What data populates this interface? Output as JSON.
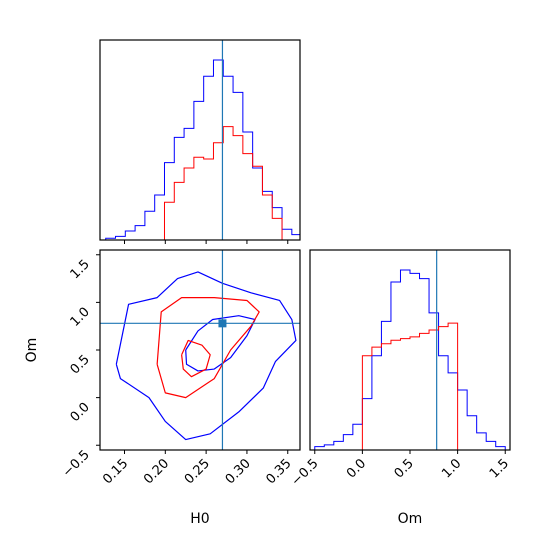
{
  "chart_data": [
    {
      "panel": "H0 marginal",
      "type": "histogram",
      "x_range": [
        0.12,
        0.365
      ],
      "truth": 0.27,
      "truth_color": "#1f77b4",
      "series": [
        {
          "color": "#0000ff",
          "bin_edges": [
            0.115,
            0.127,
            0.139,
            0.151,
            0.163,
            0.175,
            0.187,
            0.199,
            0.211,
            0.223,
            0.235,
            0.247,
            0.259,
            0.271,
            0.283,
            0.295,
            0.307,
            0.319,
            0.331,
            0.343,
            0.355,
            0.367
          ],
          "counts": [
            0,
            1,
            2,
            5,
            8,
            16,
            25,
            43,
            57,
            62,
            77,
            91,
            100,
            91,
            82,
            60,
            40,
            27,
            18,
            6,
            3
          ]
        },
        {
          "color": "#ff0000",
          "bin_edges": [
            0.199,
            0.211,
            0.223,
            0.235,
            0.247,
            0.259,
            0.271,
            0.283,
            0.295,
            0.307,
            0.319,
            0.331,
            0.343
          ],
          "counts": [
            21,
            32,
            40,
            46,
            45,
            54,
            63,
            58,
            48,
            41,
            25,
            12
          ]
        }
      ],
      "x_ticks": [
        "",
        "",
        "",
        "",
        "",
        ""
      ]
    },
    {
      "panel": "H0-Om joint",
      "type": "contour",
      "xlabel": "H0",
      "ylabel": "Om",
      "x_range": [
        0.12,
        0.365
      ],
      "y_range": [
        -0.55,
        1.55
      ],
      "truth_point": [
        0.27,
        0.78
      ],
      "x_ticks": [
        "0.15",
        "0.20",
        "0.25",
        "0.30",
        "0.35"
      ],
      "y_ticks": [
        "−0.5",
        "0.0",
        "0.5",
        "1.0",
        "1.5"
      ],
      "contours": [
        {
          "color": "#0000ff",
          "level": "outer",
          "points": [
            [
              0.14,
              0.35
            ],
            [
              0.155,
              0.98
            ],
            [
              0.19,
              1.05
            ],
            [
              0.215,
              1.25
            ],
            [
              0.24,
              1.32
            ],
            [
              0.27,
              1.2
            ],
            [
              0.305,
              1.1
            ],
            [
              0.34,
              1.02
            ],
            [
              0.355,
              0.82
            ],
            [
              0.36,
              0.6
            ],
            [
              0.335,
              0.38
            ],
            [
              0.32,
              0.1
            ],
            [
              0.29,
              -0.15
            ],
            [
              0.255,
              -0.38
            ],
            [
              0.225,
              -0.44
            ],
            [
              0.2,
              -0.25
            ],
            [
              0.18,
              0.0
            ],
            [
              0.145,
              0.2
            ],
            [
              0.14,
              0.35
            ]
          ]
        },
        {
          "color": "#0000ff",
          "level": "inner",
          "points": [
            [
              0.225,
              0.5
            ],
            [
              0.24,
              0.7
            ],
            [
              0.258,
              0.82
            ],
            [
              0.29,
              0.86
            ],
            [
              0.31,
              0.82
            ],
            [
              0.3,
              0.65
            ],
            [
              0.28,
              0.42
            ],
            [
              0.26,
              0.3
            ],
            [
              0.24,
              0.28
            ],
            [
              0.226,
              0.35
            ],
            [
              0.225,
              0.5
            ]
          ]
        },
        {
          "color": "#ff0000",
          "level": "outer",
          "points": [
            [
              0.19,
              0.35
            ],
            [
              0.195,
              0.9
            ],
            [
              0.22,
              1.05
            ],
            [
              0.26,
              1.05
            ],
            [
              0.3,
              1.02
            ],
            [
              0.315,
              0.9
            ],
            [
              0.305,
              0.75
            ],
            [
              0.28,
              0.5
            ],
            [
              0.26,
              0.2
            ],
            [
              0.225,
              0.0
            ],
            [
              0.2,
              0.05
            ],
            [
              0.19,
              0.35
            ]
          ]
        },
        {
          "color": "#ff0000",
          "level": "inner",
          "points": [
            [
              0.22,
              0.45
            ],
            [
              0.228,
              0.6
            ],
            [
              0.245,
              0.55
            ],
            [
              0.255,
              0.45
            ],
            [
              0.25,
              0.3
            ],
            [
              0.232,
              0.22
            ],
            [
              0.222,
              0.3
            ],
            [
              0.22,
              0.45
            ]
          ]
        }
      ]
    },
    {
      "panel": "Om marginal",
      "type": "histogram",
      "xlabel": "Om",
      "x_range": [
        -0.55,
        1.55
      ],
      "truth": 0.78,
      "truth_color": "#1f77b4",
      "x_ticks": [
        "−0.5",
        "0.0",
        "0.5",
        "1.0",
        "1.5"
      ],
      "series": [
        {
          "color": "#0000ff",
          "bin_edges": [
            -0.5,
            -0.4,
            -0.3,
            -0.2,
            -0.1,
            0.0,
            0.1,
            0.2,
            0.3,
            0.4,
            0.5,
            0.6,
            0.7,
            0.8,
            0.9,
            1.0,
            1.1,
            1.2,
            1.3,
            1.4,
            1.5
          ],
          "counts": [
            2,
            3,
            5,
            9,
            15,
            30,
            55,
            75,
            98,
            105,
            103,
            100,
            80,
            55,
            45,
            35,
            20,
            10,
            5,
            2
          ]
        },
        {
          "color": "#ff0000",
          "bin_edges": [
            0.0,
            0.1,
            0.2,
            0.3,
            0.4,
            0.5,
            0.6,
            0.7,
            0.8,
            0.9,
            1.0
          ],
          "counts": [
            55,
            60,
            62,
            64,
            65,
            66,
            68,
            70,
            72,
            74
          ]
        }
      ]
    }
  ]
}
